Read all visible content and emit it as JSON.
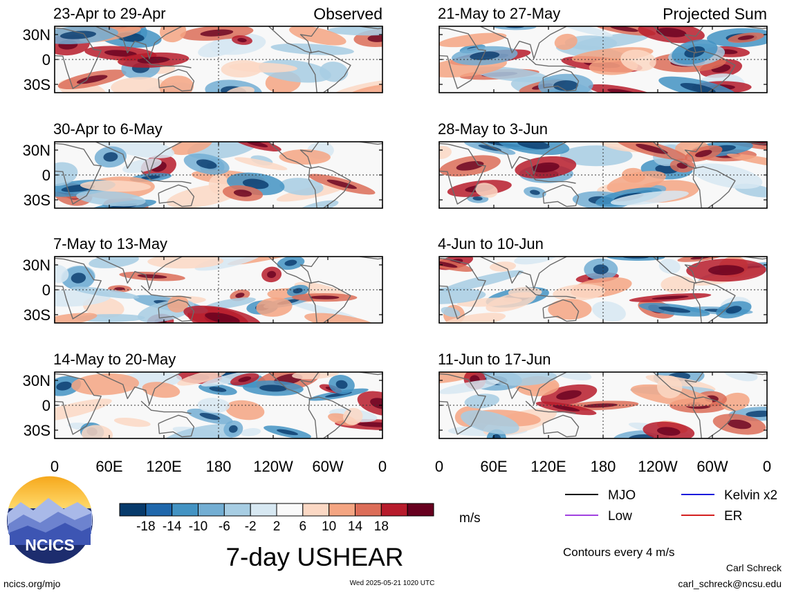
{
  "figure": {
    "title": "7-day USHEAR",
    "units": "m/s",
    "contour_note": "Contours every 4 m/s",
    "site": "ncics.org/mjo",
    "timestamp": "Wed 2025-05-21 1020 UTC",
    "author": "Carl Schreck",
    "email": "carl_schreck@ncsu.edu",
    "logo_text": "NCICS"
  },
  "columns": {
    "left_label": "Observed",
    "right_label": "Projected Sum"
  },
  "legend": {
    "items": [
      {
        "label": "MJO",
        "color": "#000000"
      },
      {
        "label": "Kelvin x2",
        "color": "#1a1adc"
      },
      {
        "label": "Low",
        "color": "#a040e0"
      },
      {
        "label": "ER",
        "color": "#d42020"
      }
    ]
  },
  "colorbar": {
    "colors": [
      "#073a6b",
      "#1f67ab",
      "#4393c3",
      "#73aed3",
      "#a7cde3",
      "#d7e8f2",
      "#fafafa",
      "#fbd8c4",
      "#f4a582",
      "#dc6d58",
      "#b71c2c",
      "#67001f"
    ],
    "labels": [
      "-18",
      "-14",
      "-10",
      "-6",
      "-2",
      "2",
      "6",
      "10",
      "14",
      "18"
    ]
  },
  "chart_data": {
    "type": "heatmap",
    "variable": "7-day USHEAR",
    "units": "m/s",
    "x_tick_labels": [
      "0",
      "60E",
      "120E",
      "180",
      "120W",
      "60W",
      "0"
    ],
    "y_tick_labels": [
      "30N",
      "0",
      "30S"
    ],
    "panels": [
      {
        "title": "23-Apr to 29-Apr",
        "column": "Observed"
      },
      {
        "title": "30-Apr to 6-May",
        "column": "Observed"
      },
      {
        "title": "7-May to 13-May",
        "column": "Observed"
      },
      {
        "title": "14-May to 20-May",
        "column": "Observed"
      },
      {
        "title": "21-May to 27-May",
        "column": "Projected Sum"
      },
      {
        "title": "28-May to 3-Jun",
        "column": "Projected Sum"
      },
      {
        "title": "4-Jun to 10-Jun",
        "column": "Projected Sum"
      },
      {
        "title": "11-Jun to 17-Jun",
        "column": "Projected Sum"
      }
    ]
  }
}
